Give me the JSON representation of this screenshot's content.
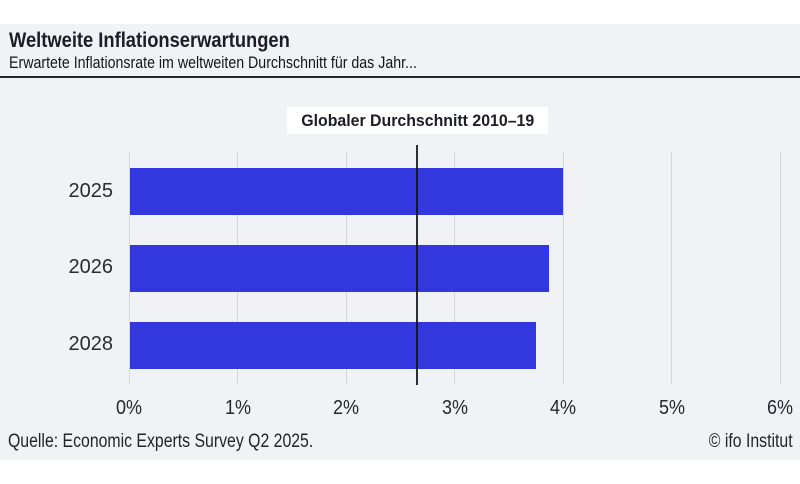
{
  "header": {
    "title": "Weltweite Inflationserwartungen",
    "subtitle": "Erwartete Inflationsrate im weltweiten Durchschnitt für das Jahr..."
  },
  "footer": {
    "source": "Quelle: Economic Experts Survey Q2 2025.",
    "copyright": "© ifo Institut"
  },
  "colors": {
    "panel_background": "#f1f2f6",
    "bar": "#3338de",
    "gridline": "#d5d6db",
    "rule": "#26272e",
    "reference_line": "#16171d",
    "annotation_background": "#ffffff",
    "text": "#1c1d26"
  },
  "chart_data": {
    "type": "bar",
    "orientation": "horizontal",
    "title": "Weltweite Inflationserwartungen",
    "subtitle": "Erwartete Inflationsrate im weltweiten Durchschnitt für das Jahr...",
    "categories": [
      "2025",
      "2026",
      "2028"
    ],
    "values": [
      4.0,
      3.87,
      3.75
    ],
    "unit": "%",
    "xlabel": "",
    "ylabel": "",
    "xlim": [
      0,
      6
    ],
    "xticks": [
      0,
      1,
      2,
      3,
      4,
      5,
      6
    ],
    "xtick_labels": [
      "0%",
      "1%",
      "2%",
      "3%",
      "4%",
      "5%",
      "6%"
    ],
    "grid": "vertical",
    "legend": "none",
    "reference_line": {
      "value": 2.65,
      "label": "Globaler Durchschnitt 2010–19"
    }
  }
}
